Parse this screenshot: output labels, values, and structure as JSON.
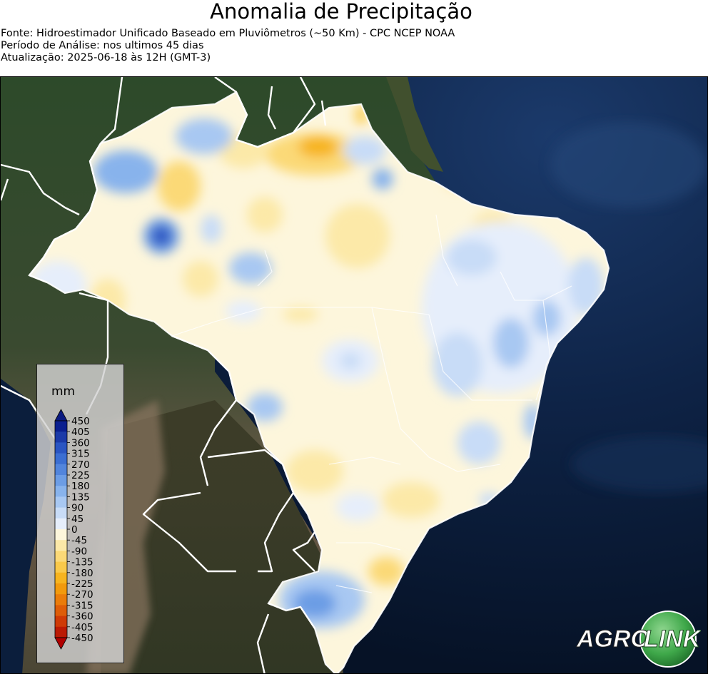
{
  "map": {
    "title": "Anomalia de Precipitação",
    "source": "Fonte: Hidroestimador Unificado Baseado em Pluviômetros (~50 Km) - CPC NCEP NOAA",
    "period": "Período de Análise: nos ultimos 45 dias",
    "updated": "Atualização: 2025-06-18 às 12H (GMT-3)"
  },
  "legend": {
    "unit": "mm",
    "ticks": [
      "450",
      "405",
      "360",
      "315",
      "270",
      "225",
      "180",
      "135",
      "90",
      "45",
      "0",
      "-45",
      "-90",
      "-135",
      "-180",
      "-225",
      "-270",
      "-315",
      "-360",
      "-405",
      "-450"
    ],
    "colors": [
      "#0a1f8f",
      "#1b3aa8",
      "#2a55c2",
      "#3b6ed2",
      "#5285dc",
      "#6c9de5",
      "#88b3ec",
      "#a8c8f2",
      "#c8dcf7",
      "#e6eefb",
      "#fdf6dc",
      "#fce9a8",
      "#fbd977",
      "#f9c94a",
      "#f7b41f",
      "#f29a0d",
      "#ea7c0a",
      "#de5d08",
      "#cf3a06",
      "#bb1a04"
    ],
    "over_color": "#0a1a80",
    "under_color": "#b00000"
  },
  "logo": {
    "text_left": "AGRO",
    "text_right": "LINK",
    "ball_color": "#3fa84a"
  }
}
